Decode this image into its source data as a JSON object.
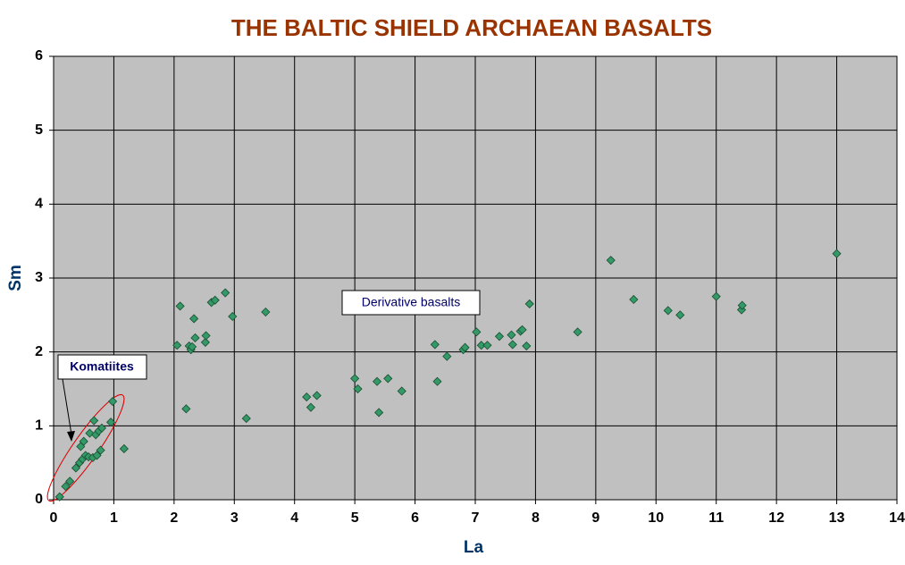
{
  "chart_data": {
    "type": "scatter",
    "title": "THE BALTIC SHIELD ARCHAEAN BASALTS",
    "x_label": "La",
    "y_label": "Sm",
    "annotations": [
      "Komatiites",
      "Derivative basalts"
    ],
    "color": "#339966",
    "grid": true,
    "xlim": [
      0,
      14
    ],
    "ylim": [
      0,
      6
    ],
    "xticks": [
      0,
      1,
      2,
      3,
      4,
      5,
      6,
      7,
      8,
      9,
      10,
      11,
      12,
      13,
      14
    ],
    "yticks": [
      0,
      1,
      2,
      3,
      4,
      5,
      6
    ],
    "x": [
      0.1,
      0.2,
      0.27,
      0.37,
      0.43,
      0.48,
      0.45,
      0.5,
      0.53,
      0.58,
      0.6,
      0.65,
      0.67,
      0.7,
      0.72,
      0.75,
      0.78,
      0.8,
      0.95,
      0.98,
      1.17,
      2.05,
      2.1,
      2.2,
      2.25,
      2.28,
      2.3,
      2.33,
      2.35,
      2.52,
      2.53,
      2.62,
      2.68,
      2.85,
      2.97,
      3.2,
      3.52,
      4.2,
      4.27,
      4.37,
      5.0,
      5.05,
      5.37,
      5.4,
      5.55,
      5.78,
      6.33,
      6.37,
      6.53,
      6.8,
      6.83,
      7.02,
      7.1,
      7.2,
      7.4,
      7.6,
      7.62,
      7.75,
      7.78,
      7.85,
      7.9,
      8.7,
      9.25,
      9.63,
      10.2,
      10.4,
      11.0,
      11.42,
      11.43,
      13.0
    ],
    "values": [
      0.04,
      0.18,
      0.25,
      0.43,
      0.5,
      0.55,
      0.72,
      0.79,
      0.6,
      0.58,
      0.9,
      0.57,
      1.07,
      0.88,
      0.6,
      0.93,
      0.67,
      0.97,
      1.05,
      1.33,
      0.69,
      2.09,
      2.62,
      1.23,
      2.08,
      2.03,
      2.07,
      2.45,
      2.19,
      2.13,
      2.22,
      2.67,
      2.7,
      2.8,
      2.48,
      1.1,
      2.54,
      1.39,
      1.25,
      1.41,
      1.64,
      1.5,
      1.6,
      1.18,
      1.64,
      1.47,
      2.1,
      1.6,
      1.94,
      2.03,
      2.06,
      2.27,
      2.09,
      2.09,
      2.21,
      2.23,
      2.1,
      2.28,
      2.3,
      2.08,
      2.65,
      2.27,
      3.24,
      2.71,
      2.56,
      2.5,
      2.75,
      2.57,
      2.63,
      3.33
    ]
  }
}
